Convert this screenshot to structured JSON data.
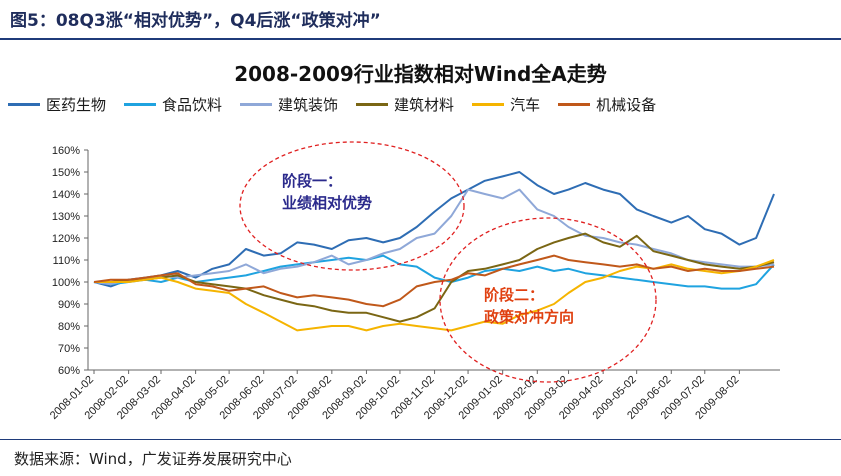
{
  "figure_title": "图5：08Q3涨“相对优势”，Q4后涨“政策对冲”",
  "source": "数据来源：Wind，广发证券发展研究中心",
  "chart_data": {
    "type": "line",
    "title": "2008-2009行业指数相对Wind全A走势",
    "xlabel": "",
    "ylabel": "",
    "ylim": [
      0.6,
      1.6
    ],
    "yticks": [
      "60%",
      "70%",
      "80%",
      "90%",
      "100%",
      "110%",
      "120%",
      "130%",
      "140%",
      "150%",
      "160%"
    ],
    "ytick_values": [
      0.6,
      0.7,
      0.8,
      0.9,
      1.0,
      1.1,
      1.2,
      1.3,
      1.4,
      1.5,
      1.6
    ],
    "x_categories": [
      "2008-01-02",
      "2008-02-02",
      "2008-03-02",
      "2008-04-02",
      "2008-05-02",
      "2008-06-02",
      "2008-07-02",
      "2008-08-02",
      "2008-09-02",
      "2008-10-02",
      "2008-11-02",
      "2008-12-02",
      "2009-01-02",
      "2009-02-02",
      "2009-03-02",
      "2009-04-02",
      "2009-05-02",
      "2009-06-02",
      "2009-07-02",
      "2009-08-02"
    ],
    "grid": false,
    "legend_position": "top",
    "x": [
      "2008-01-02",
      "2008-01-17",
      "2008-02-02",
      "2008-02-17",
      "2008-03-02",
      "2008-03-17",
      "2008-04-02",
      "2008-04-17",
      "2008-05-02",
      "2008-05-17",
      "2008-06-02",
      "2008-06-17",
      "2008-07-02",
      "2008-07-17",
      "2008-08-02",
      "2008-08-17",
      "2008-09-02",
      "2008-09-17",
      "2008-10-02",
      "2008-10-17",
      "2008-11-02",
      "2008-11-17",
      "2008-12-02",
      "2008-12-17",
      "2009-01-02",
      "2009-01-17",
      "2009-02-02",
      "2009-02-17",
      "2009-03-02",
      "2009-03-17",
      "2009-04-02",
      "2009-04-17",
      "2009-05-02",
      "2009-05-17",
      "2009-06-02",
      "2009-06-17",
      "2009-07-02",
      "2009-07-17",
      "2009-08-02",
      "2009-08-17",
      "2009-09-02"
    ],
    "series": [
      {
        "name": "医药生物",
        "color": "#2e6db4",
        "values": [
          1.0,
          0.98,
          1.01,
          1.02,
          1.03,
          1.05,
          1.02,
          1.06,
          1.08,
          1.15,
          1.12,
          1.13,
          1.18,
          1.17,
          1.15,
          1.19,
          1.2,
          1.18,
          1.2,
          1.25,
          1.32,
          1.38,
          1.42,
          1.46,
          1.48,
          1.5,
          1.44,
          1.4,
          1.42,
          1.45,
          1.42,
          1.4,
          1.33,
          1.3,
          1.27,
          1.3,
          1.24,
          1.22,
          1.17,
          1.2,
          1.4
        ]
      },
      {
        "name": "食品饮料",
        "color": "#1fa3e0",
        "values": [
          1.0,
          0.99,
          1.0,
          1.01,
          1.0,
          1.02,
          1.0,
          1.01,
          1.02,
          1.03,
          1.05,
          1.07,
          1.08,
          1.09,
          1.1,
          1.11,
          1.1,
          1.12,
          1.08,
          1.07,
          1.02,
          1.0,
          1.02,
          1.05,
          1.06,
          1.05,
          1.07,
          1.05,
          1.06,
          1.04,
          1.03,
          1.02,
          1.01,
          1.0,
          0.99,
          0.98,
          0.98,
          0.97,
          0.97,
          0.99,
          1.08
        ]
      },
      {
        "name": "建筑装饰",
        "color": "#8fa8d8",
        "values": [
          1.0,
          0.99,
          1.01,
          1.02,
          1.03,
          1.02,
          1.03,
          1.04,
          1.05,
          1.08,
          1.04,
          1.06,
          1.07,
          1.09,
          1.12,
          1.08,
          1.1,
          1.13,
          1.15,
          1.2,
          1.22,
          1.3,
          1.42,
          1.4,
          1.38,
          1.42,
          1.33,
          1.3,
          1.25,
          1.21,
          1.2,
          1.18,
          1.17,
          1.15,
          1.13,
          1.1,
          1.09,
          1.08,
          1.07,
          1.07,
          1.08
        ]
      },
      {
        "name": "建筑材料",
        "color": "#7a6614",
        "values": [
          1.0,
          1.0,
          1.01,
          1.01,
          1.02,
          1.03,
          1.0,
          0.99,
          0.98,
          0.97,
          0.94,
          0.92,
          0.9,
          0.89,
          0.87,
          0.86,
          0.86,
          0.84,
          0.82,
          0.84,
          0.88,
          1.0,
          1.05,
          1.06,
          1.08,
          1.1,
          1.15,
          1.18,
          1.2,
          1.22,
          1.18,
          1.16,
          1.21,
          1.14,
          1.12,
          1.1,
          1.08,
          1.07,
          1.06,
          1.07,
          1.09
        ]
      },
      {
        "name": "汽车",
        "color": "#f5b400",
        "values": [
          1.0,
          1.0,
          1.0,
          1.01,
          1.02,
          1.0,
          0.97,
          0.96,
          0.95,
          0.9,
          0.86,
          0.82,
          0.78,
          0.79,
          0.8,
          0.8,
          0.78,
          0.8,
          0.81,
          0.8,
          0.79,
          0.78,
          0.8,
          0.82,
          0.81,
          0.85,
          0.87,
          0.9,
          0.95,
          1.0,
          1.02,
          1.05,
          1.07,
          1.06,
          1.08,
          1.06,
          1.05,
          1.04,
          1.05,
          1.07,
          1.1
        ]
      },
      {
        "name": "机械设备",
        "color": "#c0581a",
        "values": [
          1.0,
          1.01,
          1.01,
          1.02,
          1.03,
          1.04,
          0.99,
          0.98,
          0.96,
          0.97,
          0.98,
          0.95,
          0.93,
          0.94,
          0.93,
          0.92,
          0.9,
          0.89,
          0.92,
          0.98,
          1.0,
          1.01,
          1.04,
          1.03,
          1.06,
          1.08,
          1.1,
          1.12,
          1.1,
          1.09,
          1.08,
          1.07,
          1.08,
          1.06,
          1.07,
          1.05,
          1.06,
          1.05,
          1.05,
          1.06,
          1.07
        ]
      }
    ],
    "annotations": [
      {
        "lines": [
          "阶段一：",
          "业绩相对优势"
        ],
        "color": "#2b2a8c"
      },
      {
        "lines": [
          "阶段二：",
          "政策对冲方向"
        ],
        "color": "#e04010"
      }
    ]
  }
}
